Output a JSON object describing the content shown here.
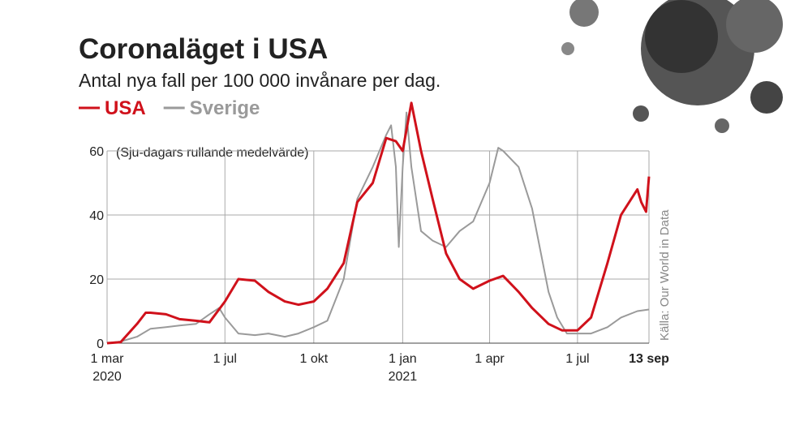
{
  "chart_data": {
    "type": "line",
    "title": "Coronaläget i USA",
    "subtitle": "Antal nya fall per 100 000 invånare per dag.",
    "annotation": "(Sju-dagars rullande medelvärde)",
    "source": "Källa: Our World in Data",
    "ylim": [
      0,
      60
    ],
    "yticks": [
      0,
      20,
      40,
      60
    ],
    "xlim": [
      "2020-03-01",
      "2021-09-13"
    ],
    "xticks": [
      {
        "value": "2020-03-01",
        "label": "1 mar"
      },
      {
        "value": "2020-07-01",
        "label": "1 jul"
      },
      {
        "value": "2020-10-01",
        "label": "1 okt"
      },
      {
        "value": "2021-01-01",
        "label": "1 jan"
      },
      {
        "value": "2021-04-01",
        "label": "1 apr"
      },
      {
        "value": "2021-07-01",
        "label": "1 jul"
      },
      {
        "value": "2021-09-13",
        "label": "13 sep"
      }
    ],
    "year_labels": [
      {
        "value": "2020-03-01",
        "label": "2020"
      },
      {
        "value": "2021-01-01",
        "label": "2021"
      }
    ],
    "grid": true,
    "series": [
      {
        "name": "USA",
        "color": "#d0111b",
        "x": [
          "2020-03-01",
          "2020-03-15",
          "2020-04-01",
          "2020-04-10",
          "2020-04-15",
          "2020-05-01",
          "2020-05-15",
          "2020-06-01",
          "2020-06-15",
          "2020-07-01",
          "2020-07-15",
          "2020-08-01",
          "2020-08-15",
          "2020-09-01",
          "2020-09-15",
          "2020-10-01",
          "2020-10-15",
          "2020-11-01",
          "2020-11-15",
          "2020-12-01",
          "2020-12-15",
          "2020-12-25",
          "2021-01-01",
          "2021-01-10",
          "2021-01-20",
          "2021-02-01",
          "2021-02-15",
          "2021-03-01",
          "2021-03-15",
          "2021-04-01",
          "2021-04-15",
          "2021-05-01",
          "2021-05-15",
          "2021-06-01",
          "2021-06-15",
          "2021-07-01",
          "2021-07-15",
          "2021-08-01",
          "2021-08-15",
          "2021-09-01",
          "2021-09-05",
          "2021-09-10",
          "2021-09-13"
        ],
        "values": [
          0,
          0.3,
          6,
          9.5,
          9.5,
          9,
          7.5,
          7,
          6.5,
          13,
          20,
          19.5,
          16,
          13,
          12,
          13,
          17,
          25,
          44,
          50,
          64,
          63,
          60,
          75,
          60,
          45,
          28,
          20,
          17,
          19.5,
          21,
          16,
          11,
          6,
          4,
          4,
          8,
          25,
          40,
          48,
          44,
          41,
          52
        ]
      },
      {
        "name": "Sverige",
        "color": "#9a9a9a",
        "x": [
          "2020-03-01",
          "2020-03-15",
          "2020-04-01",
          "2020-04-15",
          "2020-05-01",
          "2020-05-15",
          "2020-06-01",
          "2020-06-15",
          "2020-06-25",
          "2020-07-01",
          "2020-07-15",
          "2020-08-01",
          "2020-08-15",
          "2020-09-01",
          "2020-09-15",
          "2020-10-01",
          "2020-10-15",
          "2020-11-01",
          "2020-11-15",
          "2020-12-01",
          "2020-12-15",
          "2020-12-20",
          "2020-12-25",
          "2020-12-28",
          "2021-01-01",
          "2021-01-05",
          "2021-01-10",
          "2021-01-20",
          "2021-02-01",
          "2021-02-15",
          "2021-03-01",
          "2021-03-15",
          "2021-04-01",
          "2021-04-10",
          "2021-04-15",
          "2021-05-01",
          "2021-05-15",
          "2021-06-01",
          "2021-06-10",
          "2021-06-20",
          "2021-07-01",
          "2021-07-15",
          "2021-08-01",
          "2021-08-15",
          "2021-09-01",
          "2021-09-13"
        ],
        "values": [
          0,
          0.5,
          2,
          4.5,
          5,
          5.5,
          6,
          9,
          11,
          8,
          3,
          2.5,
          3,
          2,
          3,
          5,
          7,
          20,
          45,
          55,
          65,
          68,
          55,
          30,
          55,
          72,
          55,
          35,
          32,
          30,
          35,
          38,
          50,
          61,
          60,
          55,
          42,
          16,
          8,
          3,
          3,
          3,
          5,
          8,
          10,
          10.5
        ]
      }
    ]
  }
}
